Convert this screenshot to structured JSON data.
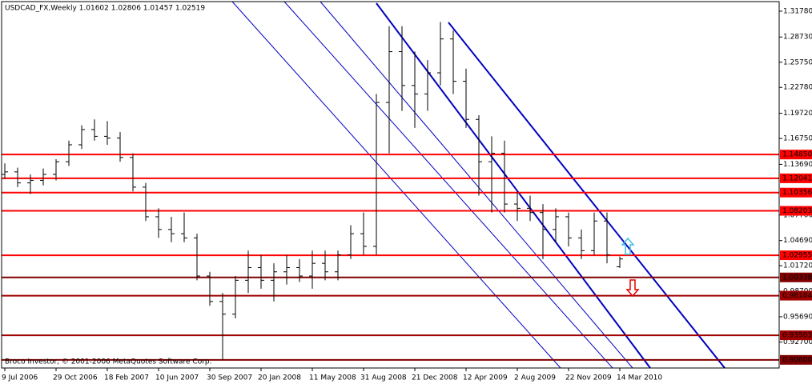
{
  "chart_data": {
    "type": "ohlc",
    "title": "USDCAD_FX,Weekly  1.01602 1.02806 1.01457 1.02519",
    "annotation": "Broco Investor, © 2001-2006 MetaQuotes Software Corp.",
    "color": "#000000",
    "categories": [
      "9 Jul 2006",
      null,
      null,
      null,
      "29 Oct 2006",
      null,
      null,
      null,
      "18 Feb 2007",
      null,
      null,
      null,
      "10 Jun 2007",
      null,
      null,
      null,
      "30 Sep 2007",
      null,
      null,
      null,
      "20 Jan 2008",
      null,
      null,
      null,
      "11 May 2008",
      null,
      null,
      null,
      "31 Aug 2008",
      null,
      null,
      null,
      "21 Dec 2008",
      null,
      null,
      null,
      "12 Apr 2009",
      null,
      null,
      null,
      "2 Aug 2009",
      null,
      null,
      null,
      "22 Nov 2009",
      null,
      null,
      null,
      "14 Mar 2010"
    ],
    "open": [
      1.125,
      1.128,
      1.115,
      1.118,
      1.125,
      1.14,
      1.16,
      1.178,
      1.17,
      1.168,
      1.145,
      1.11,
      1.075,
      1.06,
      1.055,
      1.05,
      1.005,
      0.975,
      0.96,
      1.0,
      1.015,
      1.0,
      1.01,
      1.015,
      1.005,
      1.02,
      1.01,
      1.03,
      1.055,
      1.04,
      1.21,
      1.27,
      1.23,
      1.22,
      1.245,
      1.285,
      1.235,
      1.19,
      1.14,
      1.15,
      1.09,
      1.085,
      1.08,
      1.06,
      1.075,
      1.05,
      1.035,
      1.07,
      1.01602
    ],
    "high": [
      1.138,
      1.133,
      1.125,
      1.132,
      1.143,
      1.165,
      1.183,
      1.19,
      1.188,
      1.175,
      1.15,
      1.115,
      1.085,
      1.075,
      1.08,
      1.055,
      1.01,
      0.985,
      1.005,
      1.035,
      1.03,
      1.02,
      1.03,
      1.025,
      1.035,
      1.035,
      1.035,
      1.065,
      1.08,
      1.22,
      1.3,
      1.3,
      1.27,
      1.26,
      1.305,
      1.295,
      1.25,
      1.195,
      1.17,
      1.165,
      1.105,
      1.1,
      1.09,
      1.085,
      1.08,
      1.06,
      1.08,
      1.08,
      1.02806
    ],
    "low": [
      1.12,
      1.11,
      1.102,
      1.112,
      1.118,
      1.135,
      1.155,
      1.165,
      1.16,
      1.14,
      1.105,
      1.07,
      1.05,
      1.045,
      1.045,
      1.0,
      0.97,
      0.906,
      0.955,
      0.985,
      0.99,
      0.975,
      0.995,
      0.998,
      0.99,
      1.0,
      1.0,
      1.025,
      1.03,
      1.03,
      1.15,
      1.2,
      1.18,
      1.2,
      1.23,
      1.22,
      1.18,
      1.1,
      1.08,
      1.08,
      1.07,
      1.07,
      1.025,
      1.045,
      1.04,
      1.025,
      1.03,
      1.02,
      1.01457
    ],
    "close": [
      1.128,
      1.115,
      1.118,
      1.125,
      1.14,
      1.16,
      1.178,
      1.17,
      1.168,
      1.145,
      1.11,
      1.075,
      1.06,
      1.055,
      1.05,
      1.005,
      0.975,
      0.96,
      1.0,
      1.015,
      1.0,
      1.01,
      1.015,
      1.005,
      1.02,
      1.01,
      1.03,
      1.055,
      1.04,
      1.21,
      1.27,
      1.23,
      1.22,
      1.245,
      1.285,
      1.235,
      1.19,
      1.14,
      1.15,
      1.09,
      1.085,
      1.08,
      1.06,
      1.075,
      1.05,
      1.035,
      1.07,
      1.03,
      1.02519
    ],
    "ylim": [
      0.8964,
      1.3291
    ],
    "yticks": [
      {
        "value": 1.3178,
        "label": "1.31780"
      },
      {
        "value": 1.2873,
        "label": "1.28730"
      },
      {
        "value": 1.2575,
        "label": "1.25750"
      },
      {
        "value": 1.2278,
        "label": "1.22780"
      },
      {
        "value": 1.1972,
        "label": "1.19720"
      },
      {
        "value": 1.1675,
        "label": "1.16750"
      },
      {
        "value": 1.1369,
        "label": "1.13690"
      },
      {
        "value": 1.077,
        "label": "1.07700"
      },
      {
        "value": 1.0469,
        "label": "1.04690"
      },
      {
        "value": 1.0172,
        "label": "1.01720"
      },
      {
        "value": 0.987,
        "label": "0.98700"
      },
      {
        "value": 0.9569,
        "label": "0.95690"
      },
      {
        "value": 0.927,
        "label": "0.92700"
      }
    ],
    "levels": [
      {
        "value": 1.1485,
        "label": "1.14850",
        "color": "#ff0000"
      },
      {
        "value": 1.12041,
        "label": "1.12041",
        "color": "#ff0000"
      },
      {
        "value": 1.10356,
        "label": "1.10356",
        "color": "#ff0000"
      },
      {
        "value": 1.08203,
        "label": "1.08203",
        "color": "#ff0000"
      },
      {
        "value": 1.02955,
        "label": "1.02955",
        "color": "#ff0000"
      },
      {
        "value": 1.00338,
        "label": "1.00338",
        "color": "#800000"
      },
      {
        "value": 0.98184,
        "label": "0.98184",
        "color": "#a00000"
      },
      {
        "value": 0.93503,
        "label": "0.93503",
        "color": "#a00000"
      },
      {
        "value": 0.906,
        "label": "0.90600",
        "color": "#800000"
      }
    ]
  }
}
